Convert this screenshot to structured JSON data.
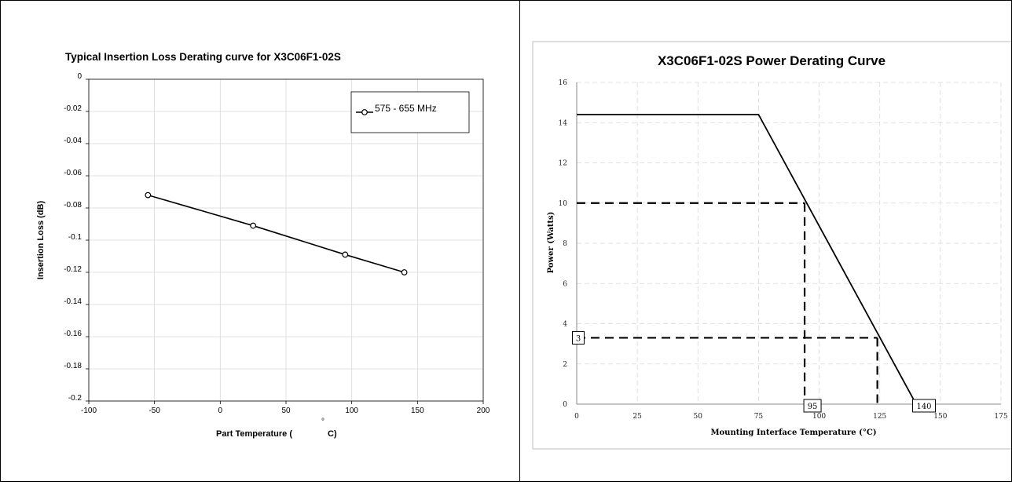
{
  "chart_data": [
    {
      "type": "line",
      "title": "Typical Insertion Loss Derating curve for X3C06F1-02S",
      "xlabel_prefix": "Part Temperature (",
      "xlabel_degree": "°",
      "xlabel_suffix": "C)",
      "ylabel": "Insertion Loss (dB)",
      "xlim": [
        -100,
        200
      ],
      "ylim": [
        -0.2,
        0
      ],
      "xticks": [
        -100,
        -50,
        0,
        50,
        100,
        150,
        200
      ],
      "yticks": [
        0,
        -0.02,
        -0.04,
        -0.06,
        -0.08,
        -0.1,
        -0.12,
        -0.14,
        -0.16,
        -0.18,
        -0.2
      ],
      "grid": true,
      "legend_position": "top-right",
      "series": [
        {
          "name": "575 - 655 MHz",
          "color": "#000000",
          "marker": "circle",
          "x": [
            -55,
            25,
            95,
            140
          ],
          "y": [
            -0.072,
            -0.091,
            -0.109,
            -0.12
          ]
        }
      ]
    },
    {
      "type": "line",
      "title": "X3C06F1-02S Power Derating Curve",
      "xlabel": "Mounting Interface Temperature (°C)",
      "ylabel": "Power (Watts)",
      "xlim": [
        0,
        175
      ],
      "ylim": [
        0,
        16
      ],
      "xticks": [
        0,
        25,
        50,
        75,
        100,
        125,
        150,
        175
      ],
      "yticks": [
        0,
        2,
        4,
        6,
        8,
        10,
        12,
        14,
        16
      ],
      "grid": true,
      "series": [
        {
          "color": "#000000",
          "x": [
            0,
            75,
            140
          ],
          "y": [
            14.4,
            14.4,
            0
          ]
        }
      ],
      "guides": [
        {
          "x": [
            0,
            94
          ],
          "y": [
            10,
            10
          ]
        },
        {
          "x": [
            94,
            94
          ],
          "y": [
            10,
            0
          ]
        },
        {
          "x": [
            0,
            124
          ],
          "y": [
            3.3,
            3.3
          ]
        },
        {
          "x": [
            124,
            124
          ],
          "y": [
            3.3,
            0
          ]
        }
      ],
      "annotations": [
        {
          "text": "3",
          "x": 0,
          "y": 3.3,
          "anchor": "y-axis"
        },
        {
          "text": "95",
          "x": 94,
          "y": 0,
          "anchor": "x-axis"
        },
        {
          "text": "140",
          "x": 140,
          "y": 0,
          "anchor": "x-axis"
        }
      ]
    }
  ]
}
